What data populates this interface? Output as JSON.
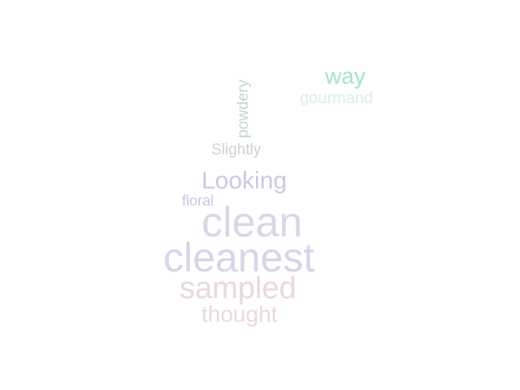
{
  "words": [
    {
      "key": "way",
      "text": "way",
      "color": "#a6e3cc"
    },
    {
      "key": "gourmand",
      "text": "gourmand",
      "color": "#d8efe7"
    },
    {
      "key": "powdery",
      "text": "powdery",
      "color": "#c5d6cc"
    },
    {
      "key": "slightly",
      "text": "Slightly",
      "color": "#cfd0d4"
    },
    {
      "key": "looking",
      "text": "Looking",
      "color": "#c8c9e3"
    },
    {
      "key": "floral",
      "text": "floral",
      "color": "#c8c7e3"
    },
    {
      "key": "clean",
      "text": "clean",
      "color": "#dcd5e5"
    },
    {
      "key": "cleanest",
      "text": "cleanest",
      "color": "#d6d6e8"
    },
    {
      "key": "sampled",
      "text": "sampled",
      "color": "#e9d8df"
    },
    {
      "key": "thought",
      "text": "thought",
      "color": "#ead9dd"
    }
  ]
}
